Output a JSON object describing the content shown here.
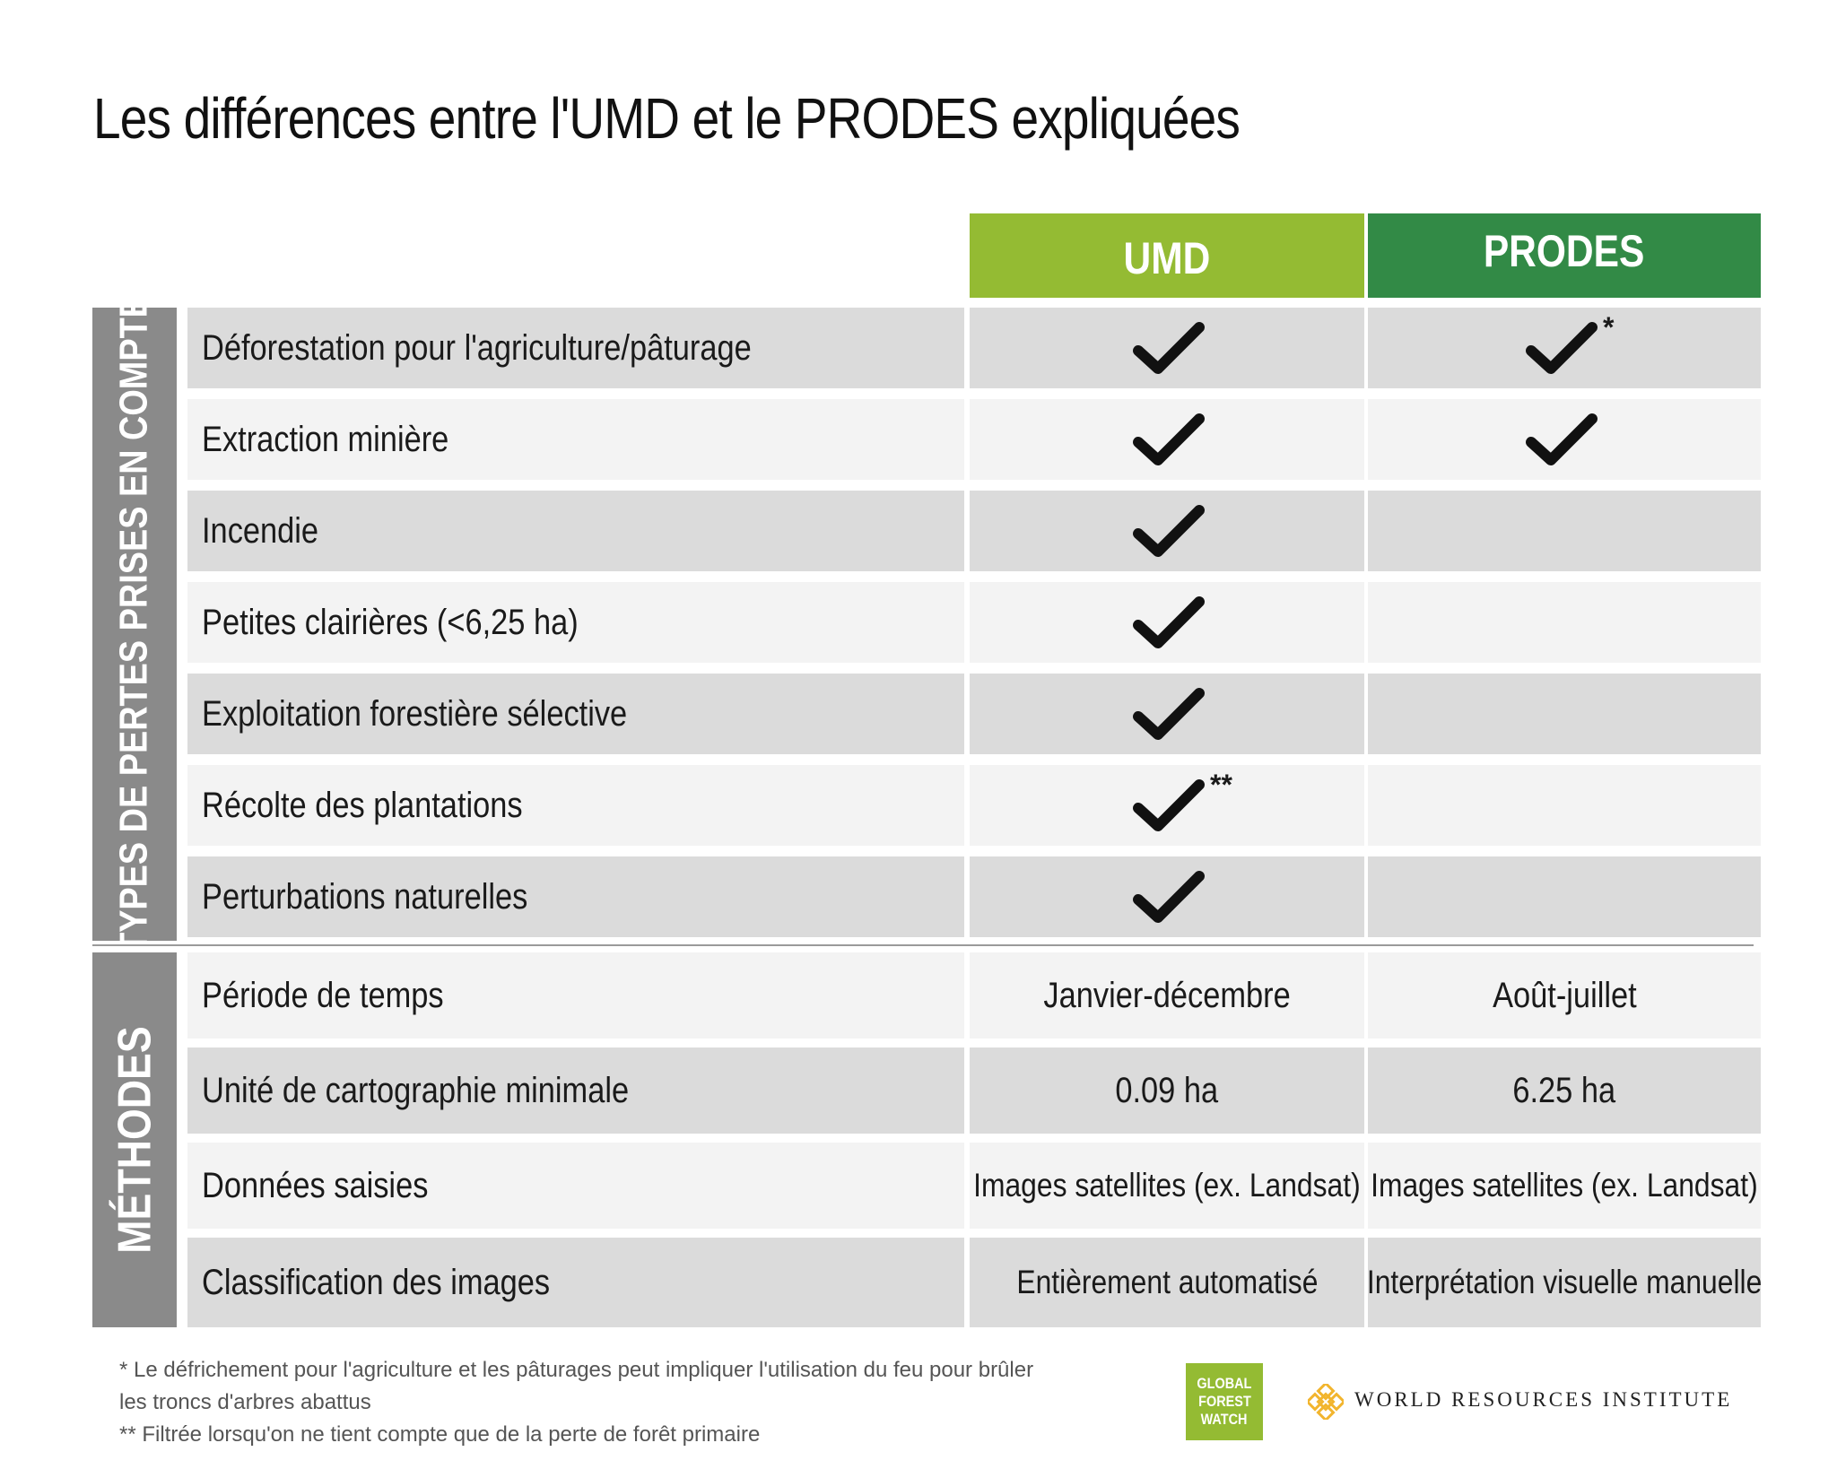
{
  "title": "Les différences entre l'UMD et le PRODES expliquées",
  "columns": {
    "umd": "UMD",
    "prodes": "PRODES"
  },
  "sections": {
    "types": "TYPES DE PERTES PRISES EN COMPTE",
    "methods": "MÉTHODES"
  },
  "types_rows": [
    {
      "label": "Déforestation pour l'agriculture/pâturage",
      "umd": true,
      "prodes": true,
      "umd_note": "",
      "prodes_note": "*"
    },
    {
      "label": "Extraction minière",
      "umd": true,
      "prodes": true,
      "umd_note": "",
      "prodes_note": ""
    },
    {
      "label": "Incendie",
      "umd": true,
      "prodes": false,
      "umd_note": "",
      "prodes_note": ""
    },
    {
      "label": "Petites clairières (<6,25 ha)",
      "umd": true,
      "prodes": false,
      "umd_note": "",
      "prodes_note": ""
    },
    {
      "label": "Exploitation forestière sélective",
      "umd": true,
      "prodes": false,
      "umd_note": "",
      "prodes_note": ""
    },
    {
      "label": "Récolte des plantations",
      "umd": true,
      "prodes": false,
      "umd_note": "**",
      "prodes_note": ""
    },
    {
      "label": "Perturbations naturelles",
      "umd": true,
      "prodes": false,
      "umd_note": "",
      "prodes_note": ""
    }
  ],
  "methods_rows": [
    {
      "label": "Période de temps",
      "umd": "Janvier-décembre",
      "prodes": "Août-juillet"
    },
    {
      "label": "Unité de cartographie minimale",
      "umd": "0.09 ha",
      "prodes": "6.25 ha"
    },
    {
      "label": "Données saisies",
      "umd": "Images satellites (ex. Landsat)",
      "prodes": "Images satellites (ex. Landsat)"
    },
    {
      "label": "Classification des images",
      "umd": "Entièrement automatisé",
      "prodes": "Interprétation visuelle manuelle"
    }
  ],
  "footnotes": [
    "* Le défrichement pour l'agriculture et les pâturages peut impliquer l'utilisation du feu pour brûler",
    "les troncs d'arbres abattus",
    "** Filtrée lorsqu'on ne tient compte que de la perte de forêt primaire"
  ],
  "logos": {
    "gfw": [
      "GLOBAL",
      "FOREST",
      "WATCH"
    ],
    "wri": "WORLD RESOURCES INSTITUTE"
  },
  "colors": {
    "umd_header": "#94bb33",
    "prodes_header": "#328a46",
    "section_bar": "#8a8a8a",
    "row_dark": "#dbdbdb",
    "row_light": "#f3f3f3",
    "wri_logo": "#f2b52e"
  },
  "icons": {
    "check": "checkmark-icon"
  }
}
